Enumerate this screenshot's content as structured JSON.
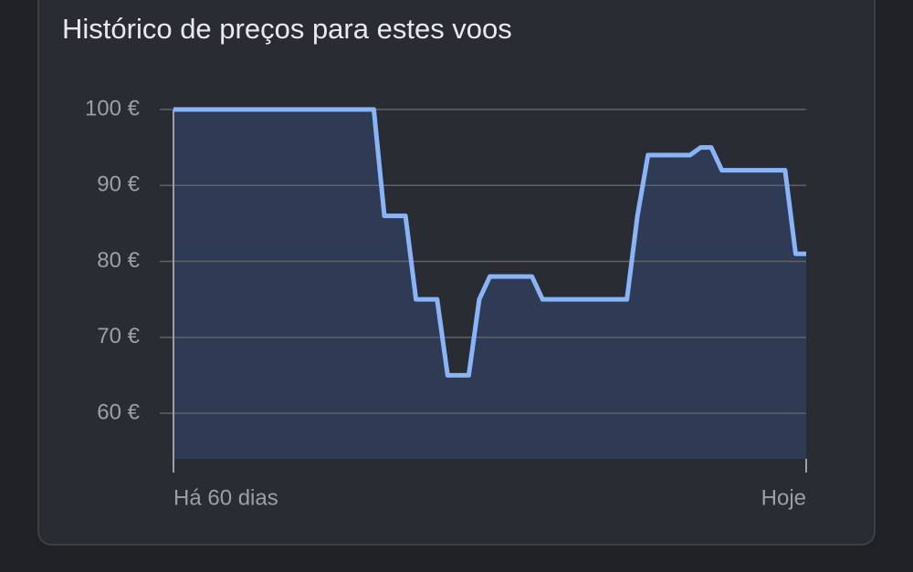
{
  "chart_data": {
    "type": "area-line",
    "title": "Histórico de preços para estes voos",
    "x": [
      0,
      1,
      2,
      3,
      4,
      5,
      6,
      7,
      8,
      9,
      10,
      11,
      12,
      13,
      14,
      15,
      16,
      17,
      18,
      19,
      20,
      21,
      22,
      23,
      24,
      25,
      26,
      27,
      28,
      29,
      30,
      31,
      32,
      33,
      34,
      35,
      36,
      37,
      38,
      39,
      40,
      41,
      42,
      43,
      44,
      45,
      46,
      47,
      48,
      49,
      50,
      51,
      52,
      53,
      54,
      55,
      56,
      57,
      58,
      59,
      60
    ],
    "values": [
      100,
      100,
      100,
      100,
      100,
      100,
      100,
      100,
      100,
      100,
      100,
      100,
      100,
      100,
      100,
      100,
      100,
      100,
      100,
      100,
      86,
      86,
      86,
      75,
      75,
      75,
      65,
      65,
      65,
      75,
      78,
      78,
      78,
      78,
      78,
      75,
      75,
      75,
      75,
      75,
      75,
      75,
      75,
      75,
      86,
      94,
      94,
      94,
      94,
      94,
      95,
      95,
      92,
      92,
      92,
      92,
      92,
      92,
      92,
      81,
      81
    ],
    "color": "#8ab4f8",
    "fill": "#2f3b55",
    "xlim": [
      0,
      60
    ],
    "xticks": [
      {
        "value": 0,
        "label": "Há 60 dias"
      },
      {
        "value": 60,
        "label": "Hoje"
      }
    ],
    "ylim": [
      54,
      100
    ],
    "yticks": [
      {
        "value": 60,
        "label": "60 €"
      },
      {
        "value": 70,
        "label": "70 €"
      },
      {
        "value": 80,
        "label": "80 €"
      },
      {
        "value": 90,
        "label": "90 €"
      },
      {
        "value": 100,
        "label": "100 €"
      }
    ],
    "grid": true
  }
}
